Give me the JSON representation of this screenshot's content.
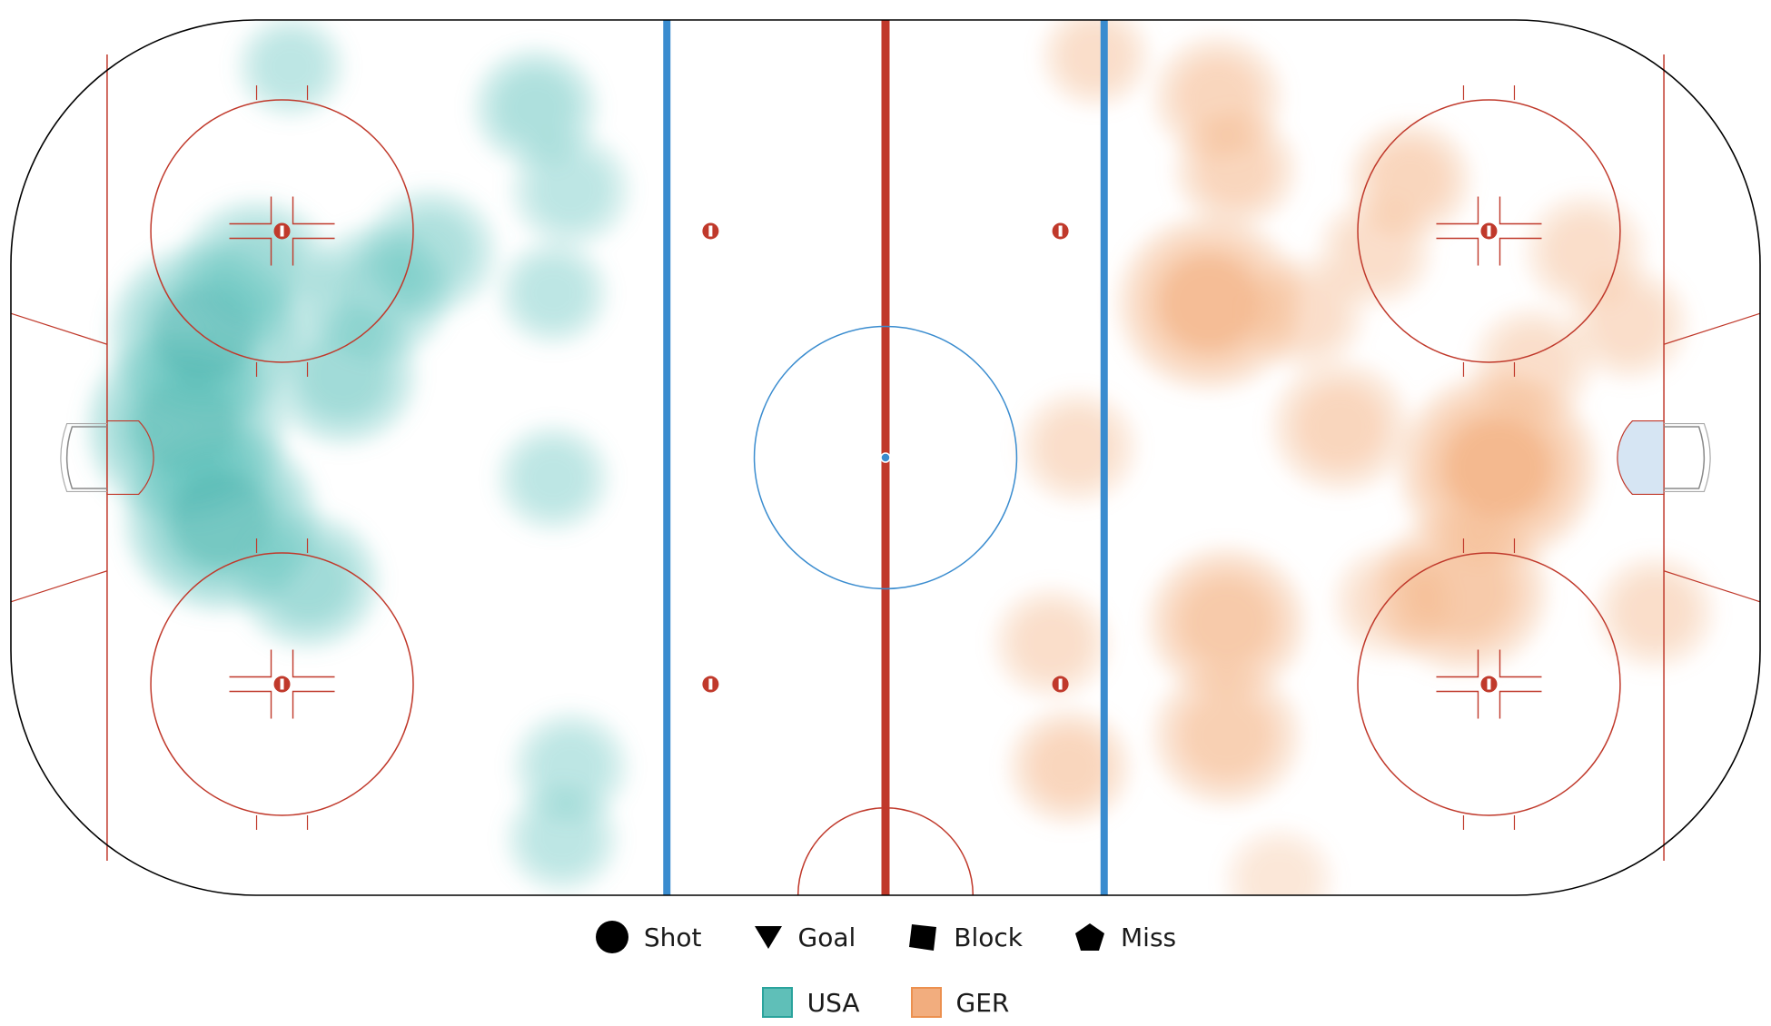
{
  "chart_data": {
    "type": "heatmap",
    "title": "",
    "xlabel": "",
    "ylabel": "",
    "xlim": [
      -100,
      100
    ],
    "ylim": [
      -42.5,
      42.5
    ],
    "rink_units": "feet",
    "grid": false,
    "legend_placement": "bottom-center",
    "event_types": [
      "Shot",
      "Goal",
      "Block",
      "Miss"
    ],
    "series": [
      {
        "name": "USA",
        "color": "#5fbfb8",
        "peak_color": "#2aa39c",
        "attacking_end": "left",
        "hotspots": [
          {
            "x": -80,
            "y": 3,
            "intensity": 1.0
          },
          {
            "x": -76,
            "y": -6,
            "intensity": 0.95
          },
          {
            "x": -78,
            "y": 12,
            "intensity": 0.9
          },
          {
            "x": -72,
            "y": 18,
            "intensity": 0.55
          },
          {
            "x": -62,
            "y": 8,
            "intensity": 0.5
          },
          {
            "x": -58,
            "y": 16,
            "intensity": 0.45
          },
          {
            "x": -66,
            "y": -12,
            "intensity": 0.45
          },
          {
            "x": -52,
            "y": 20,
            "intensity": 0.35
          },
          {
            "x": -40,
            "y": 34,
            "intensity": 0.28
          },
          {
            "x": -36,
            "y": 26,
            "intensity": 0.22
          },
          {
            "x": -38,
            "y": -2,
            "intensity": 0.15
          },
          {
            "x": -36,
            "y": -30,
            "intensity": 0.18
          },
          {
            "x": -37,
            "y": -37,
            "intensity": 0.15
          },
          {
            "x": -38,
            "y": 16,
            "intensity": 0.12
          },
          {
            "x": -68,
            "y": 38,
            "intensity": 0.1
          }
        ]
      },
      {
        "name": "GER",
        "color": "#f2ad7e",
        "peak_color": "#ec904f",
        "attacking_end": "right",
        "hotspots": [
          {
            "x": 70,
            "y": -1,
            "intensity": 1.0
          },
          {
            "x": 66,
            "y": -13,
            "intensity": 0.72
          },
          {
            "x": 37,
            "y": 15,
            "intensity": 0.85
          },
          {
            "x": 39,
            "y": -16,
            "intensity": 0.6
          },
          {
            "x": 39,
            "y": -27,
            "intensity": 0.5
          },
          {
            "x": 52,
            "y": 3,
            "intensity": 0.4
          },
          {
            "x": 38,
            "y": 35,
            "intensity": 0.32
          },
          {
            "x": 40,
            "y": 28,
            "intensity": 0.25
          },
          {
            "x": 22,
            "y": 1,
            "intensity": 0.2
          },
          {
            "x": 21,
            "y": -30,
            "intensity": 0.25
          },
          {
            "x": 19,
            "y": -18,
            "intensity": 0.18
          },
          {
            "x": 60,
            "y": 27,
            "intensity": 0.25
          },
          {
            "x": 80,
            "y": 20,
            "intensity": 0.22
          },
          {
            "x": 85,
            "y": 13,
            "intensity": 0.2
          },
          {
            "x": 88,
            "y": -15,
            "intensity": 0.2
          },
          {
            "x": 56,
            "y": 20,
            "intensity": 0.15
          },
          {
            "x": 74,
            "y": 9,
            "intensity": 0.22
          },
          {
            "x": 48,
            "y": 14,
            "intensity": 0.2
          },
          {
            "x": 58,
            "y": -14,
            "intensity": 0.2
          },
          {
            "x": 24,
            "y": 39,
            "intensity": 0.1
          },
          {
            "x": 45,
            "y": -41,
            "intensity": 0.08
          }
        ]
      }
    ]
  }
}
